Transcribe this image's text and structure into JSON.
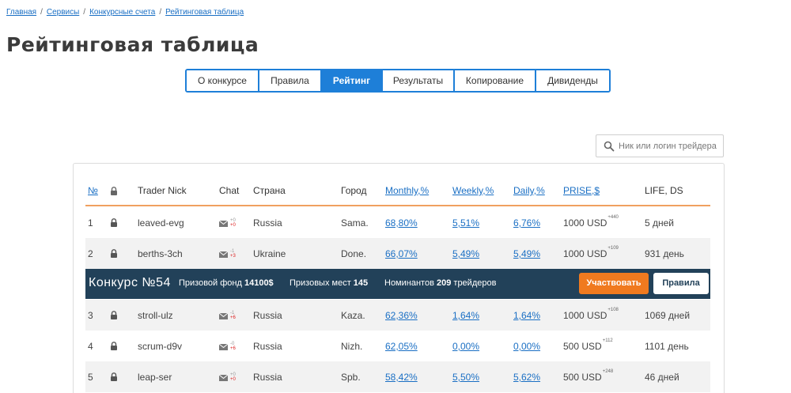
{
  "breadcrumb": {
    "items": [
      "Главная",
      "Сервисы",
      "Конкурсные счета",
      "Рейтинговая таблица"
    ],
    "separator": "/"
  },
  "page_title": "Рейтинговая таблица",
  "tabs": [
    {
      "label": "О конкурсе",
      "active": false
    },
    {
      "label": "Правила",
      "active": false
    },
    {
      "label": "Рейтинг",
      "active": true
    },
    {
      "label": "Результаты",
      "active": false
    },
    {
      "label": "Копирование",
      "active": false
    },
    {
      "label": "Дивиденды",
      "active": false
    }
  ],
  "search": {
    "placeholder": "Ник или логин трейдера",
    "icon": "search-icon"
  },
  "table": {
    "headers": {
      "num": "№",
      "lock": "lock-icon",
      "nick": "Trader Nick",
      "chat": "Chat",
      "country": "Страна",
      "city": "Город",
      "monthly": "Monthly,%",
      "weekly": "Weekly,%",
      "daily": "Daily,%",
      "prise": "PRISE,$",
      "life": "LIFE, DS"
    },
    "rows": [
      {
        "num": "1",
        "nick": "leaved-evg",
        "chat_top": "+0",
        "chat_bottom": "+0",
        "country": "Russia",
        "city": "Sama.",
        "monthly": "68,80%",
        "weekly": "5,51%",
        "daily": "6,76%",
        "prise": "1000 USD",
        "prise_bonus": "+440",
        "life": "5 дней"
      },
      {
        "num": "2",
        "nick": "berths-3ch",
        "chat_top": "-1",
        "chat_bottom": "+3",
        "country": "Ukraine",
        "city": "Done.",
        "monthly": "66,07%",
        "weekly": "5,49%",
        "daily": "5,49%",
        "prise": "1000 USD",
        "prise_bonus": "+109",
        "life": "931 день"
      },
      {
        "num": "3",
        "nick": "stroll-ulz",
        "chat_top": "-1",
        "chat_bottom": "+6",
        "country": "Russia",
        "city": "Kaza.",
        "monthly": "62,36%",
        "weekly": "1,64%",
        "daily": "1,64%",
        "prise": "1000 USD",
        "prise_bonus": "+108",
        "life": "1069 дней"
      },
      {
        "num": "4",
        "nick": "scrum-d9v",
        "chat_top": "-0",
        "chat_bottom": "+6",
        "country": "Russia",
        "city": "Nizh.",
        "monthly": "62,05%",
        "weekly": "0,00%",
        "daily": "0,00%",
        "prise": "500 USD",
        "prise_bonus": "+112",
        "life": "1101 день"
      },
      {
        "num": "5",
        "nick": "leap-ser",
        "chat_top": "+0",
        "chat_bottom": "+0",
        "country": "Russia",
        "city": "Spb.",
        "monthly": "58,42%",
        "weekly": "5,50%",
        "daily": "5,62%",
        "prise": "500 USD",
        "prise_bonus": "+248",
        "life": "46 дней"
      }
    ]
  },
  "banner": {
    "title": "Конкурс №54",
    "fund_label": "Призовой фонд",
    "fund_value": "14100$",
    "places_label": "Призовых мест",
    "places_value": "145",
    "nominees_label": "Номинантов",
    "nominees_value": "209",
    "nominees_suffix": "трейдеров",
    "participate_button": "Участвовать",
    "rules_button": "Правила"
  },
  "colors": {
    "accent": "#1e7fd8",
    "link": "#1a6fc4",
    "banner_bg": "#224159",
    "orange_button": "#f07a1f",
    "header_underline": "#f0a060",
    "row_alt": "#f2f2f2"
  }
}
